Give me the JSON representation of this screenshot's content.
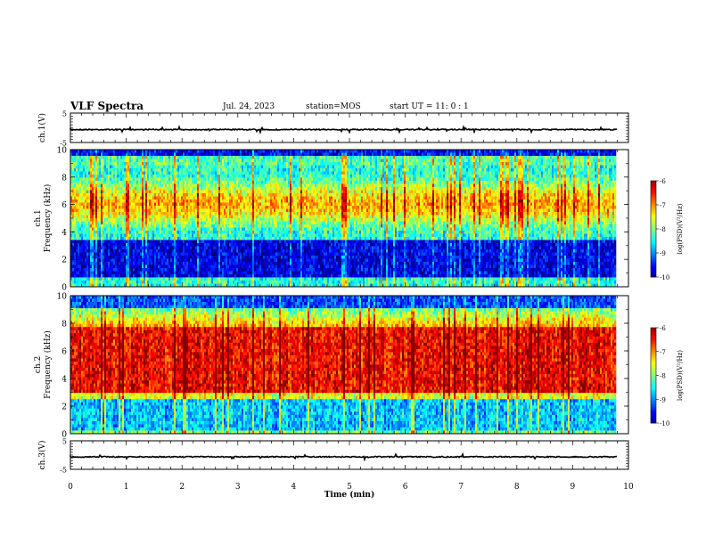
{
  "header": {
    "title": "VLF Spectra",
    "date": "Jul. 24, 2023",
    "station": "station=MOS",
    "start": "start UT =  11: 0  : 1"
  },
  "chart_data": [
    {
      "type": "line",
      "name": "waveform-ch1",
      "ylabel": "ch.1(V)",
      "ylim": [
        -5,
        5
      ],
      "yticks": [
        "5",
        "-5"
      ],
      "xlim": [
        0,
        10
      ]
    },
    {
      "type": "heatmap",
      "name": "spectrogram-ch1",
      "ylabel_line1": "ch.1",
      "ylabel_line2": "Frequency (kHz)",
      "ylim": [
        0,
        10
      ],
      "yticks": [
        "0",
        "2",
        "4",
        "6",
        "8",
        "10"
      ],
      "xlim": [
        0,
        10
      ],
      "colorbar": {
        "label": "log(PSD)(V²/Hz)",
        "range": [
          -10,
          -6
        ],
        "ticks": [
          "-6",
          "-7",
          "-8",
          "-9",
          "-10"
        ]
      }
    },
    {
      "type": "heatmap",
      "name": "spectrogram-ch2",
      "ylabel_line1": "ch.2",
      "ylabel_line2": "Frequency (kHz)",
      "ylim": [
        0,
        10
      ],
      "yticks": [
        "0",
        "2",
        "4",
        "6",
        "8",
        "10"
      ],
      "xlim": [
        0,
        10
      ],
      "colorbar": {
        "label": "log(PSD)(V²/Hz)",
        "range": [
          -10,
          -6
        ],
        "ticks": [
          "-6",
          "-7",
          "-8",
          "-9",
          "-10"
        ]
      }
    },
    {
      "type": "line",
      "name": "waveform-ch3",
      "ylabel": "ch.3(V)",
      "ylim": [
        -5,
        5
      ],
      "yticks": [
        "5",
        "-5"
      ],
      "xlim": [
        0,
        10
      ],
      "xlabel": "Time (min)",
      "xticks": [
        "0",
        "1",
        "2",
        "3",
        "4",
        "5",
        "6",
        "7",
        "8",
        "9",
        "10"
      ]
    }
  ]
}
